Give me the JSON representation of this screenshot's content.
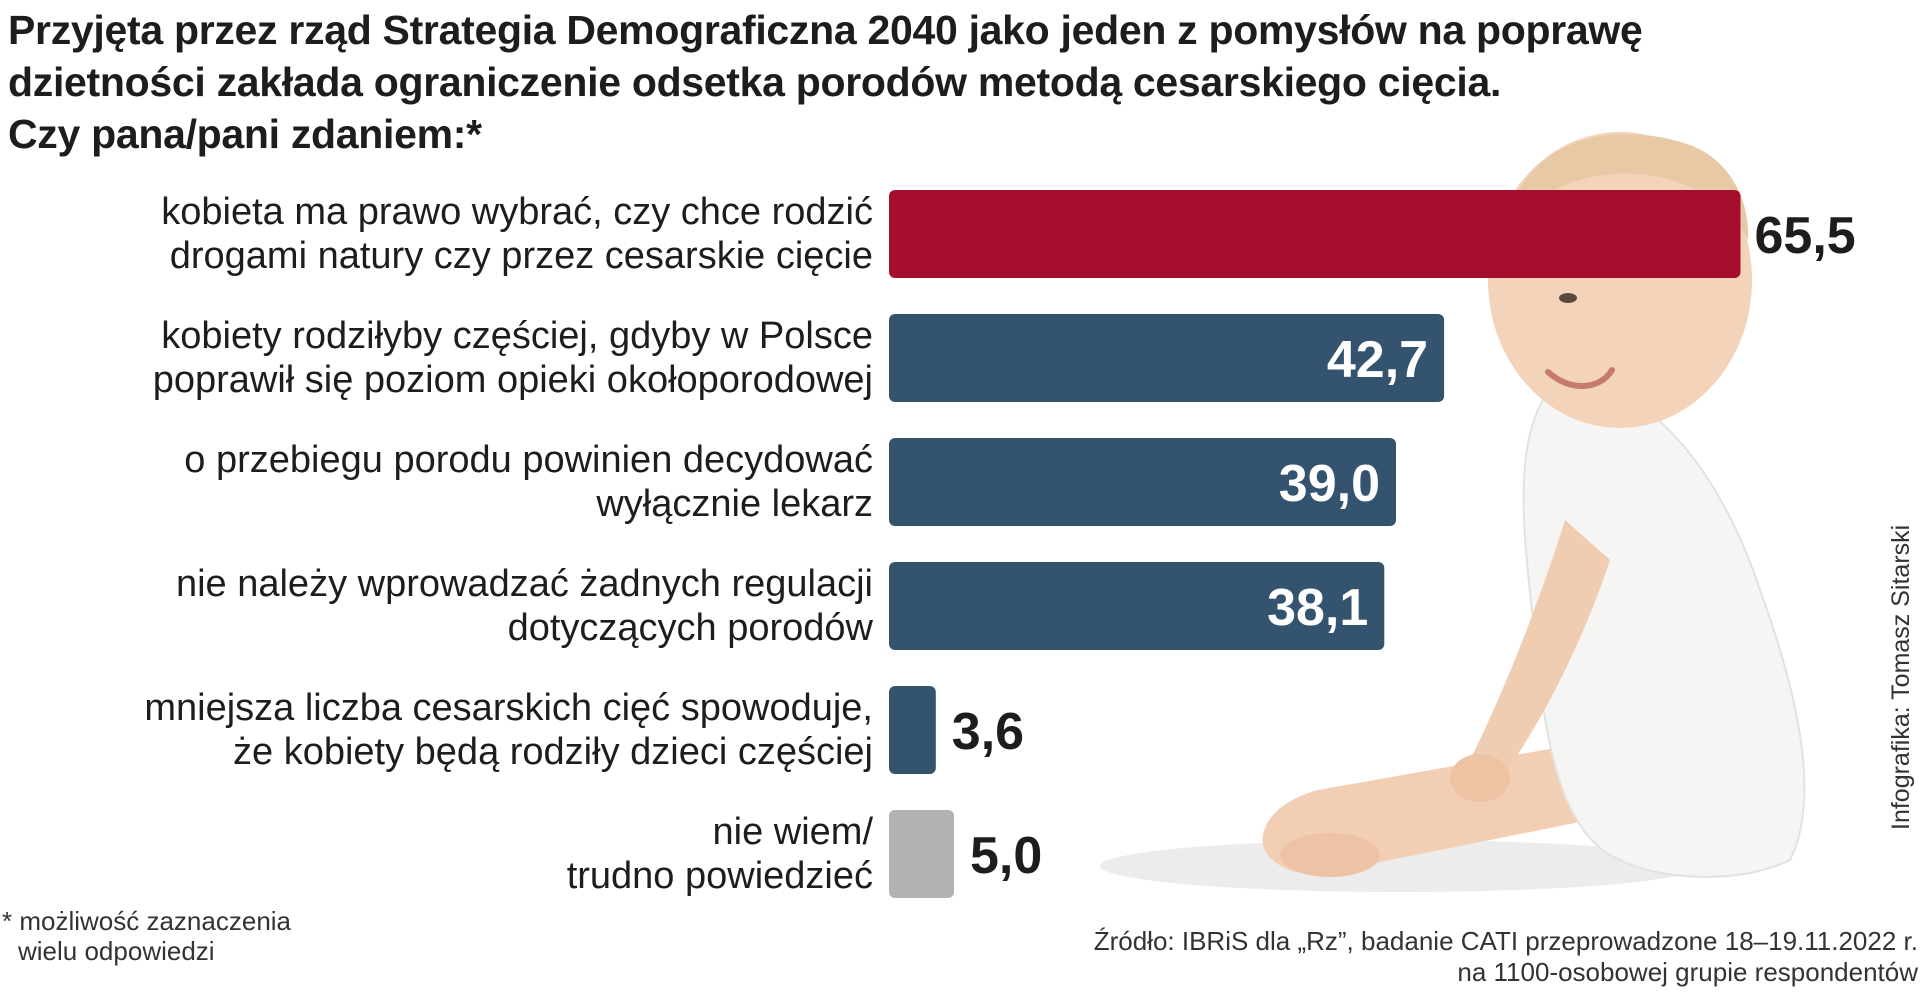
{
  "title": {
    "line1": "Przyjęta przez rząd Strategia Demograficzna 2040 jako jeden z pomysłów na poprawę",
    "line2": "dzietności zakłada ograniczenie odsetka porodów metodą cesarskiego cięcia.",
    "line3": "Czy pana/pani zdaniem:*"
  },
  "chart_data": {
    "type": "bar",
    "orientation": "horizontal",
    "title": "Przyjęta przez rząd Strategia Demograficzna 2040 jako jeden z pomysłów na poprawę dzietności zakłada ograniczenie odsetka porodów metodą cesarskiego cięcia. Czy pana/pani zdaniem:*",
    "unit": "%",
    "categories": [
      [
        "kobieta ma prawo wybrać, czy chce rodzić",
        "drogami natury czy przez cesarskie cięcie"
      ],
      [
        "kobiety rodziłyby częściej, gdyby w Polsce",
        "poprawił się poziom opieki okołoporodowej"
      ],
      [
        "o przebiegu porodu powinien decydować",
        "wyłącznie lekarz"
      ],
      [
        "nie należy wprowadzać żadnych regulacji",
        "dotyczących porodów"
      ],
      [
        "mniejsza liczba cesarskich cięć spowoduje,",
        "że kobiety będą rodziły dzieci częściej"
      ],
      [
        "nie wiem/",
        "trudno powiedzieć"
      ]
    ],
    "values": [
      65.5,
      42.7,
      39.0,
      38.1,
      3.6,
      5.0
    ],
    "value_labels": [
      "65,5",
      "42,7",
      "39,0",
      "38,1",
      "3,6",
      "5,0"
    ],
    "bar_colors": [
      "#a50f2d",
      "#33536f",
      "#33536f",
      "#33536f",
      "#33536f",
      "#b2b2b2"
    ],
    "xlim": [
      0,
      100
    ],
    "grid": false,
    "legend": "none"
  },
  "footnote": {
    "line1": "* możliwość zaznaczenia",
    "line2": "wielu odpowiedzi"
  },
  "source": {
    "line1": "Źródło: IBRiS dla „Rz”, badanie CATI przeprowadzone 18–19.11.2022 r.",
    "line2": "na 1100-osobowej grupie respondentów"
  },
  "credit": "Infografika: Tomasz Sitarski"
}
